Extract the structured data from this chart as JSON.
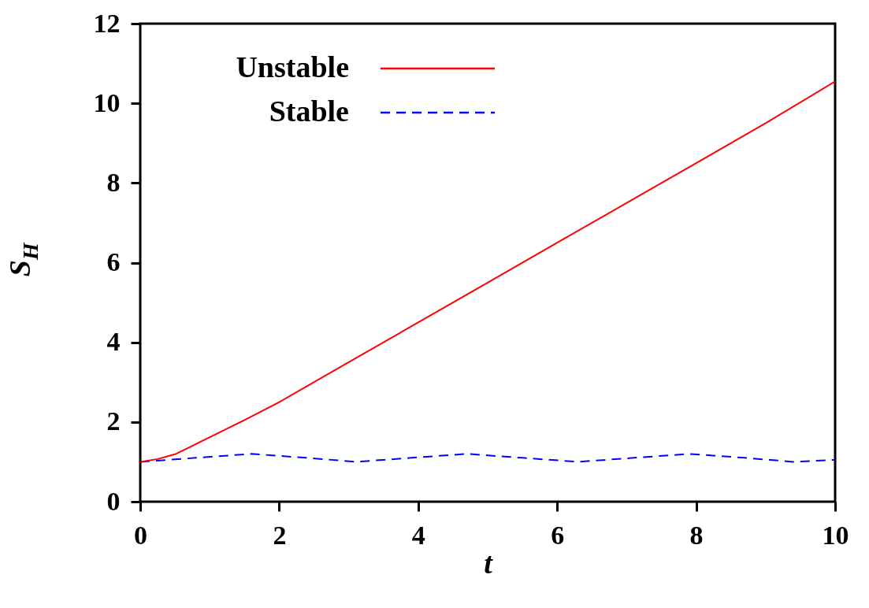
{
  "chart_data": {
    "type": "line",
    "xlabel": "t",
    "ylabel": "S$_{H}$",
    "xlim": [
      0,
      10
    ],
    "ylim": [
      0,
      12
    ],
    "xticks": [
      0,
      2,
      4,
      6,
      8,
      10
    ],
    "yticks": [
      0,
      2,
      4,
      6,
      8,
      10,
      12
    ],
    "grid": false,
    "legend": "top left",
    "marker": "none",
    "series": [
      {
        "name": "Unstable",
        "color": "#ff0000",
        "line_style": "solid",
        "x": [
          0,
          0.25,
          0.5,
          0.75,
          1,
          1.5,
          2,
          3,
          4,
          5,
          6,
          7,
          8,
          9,
          10
        ],
        "values": [
          1.0,
          1.07,
          1.19,
          1.4,
          1.62,
          2.05,
          2.5,
          3.5,
          4.5,
          5.5,
          6.5,
          7.5,
          8.5,
          9.5,
          10.55
        ]
      },
      {
        "name": "Stable",
        "color": "#0000ff",
        "line_style": "dashed",
        "x": [
          0,
          0.8,
          1.6,
          2.4,
          3.1,
          3.9,
          4.7,
          5.5,
          6.3,
          7.1,
          7.9,
          8.7,
          9.4,
          10
        ],
        "values": [
          1.0,
          1.1,
          1.2,
          1.1,
          1.0,
          1.1,
          1.2,
          1.1,
          1.0,
          1.1,
          1.2,
          1.1,
          1.0,
          1.05
        ]
      }
    ]
  }
}
